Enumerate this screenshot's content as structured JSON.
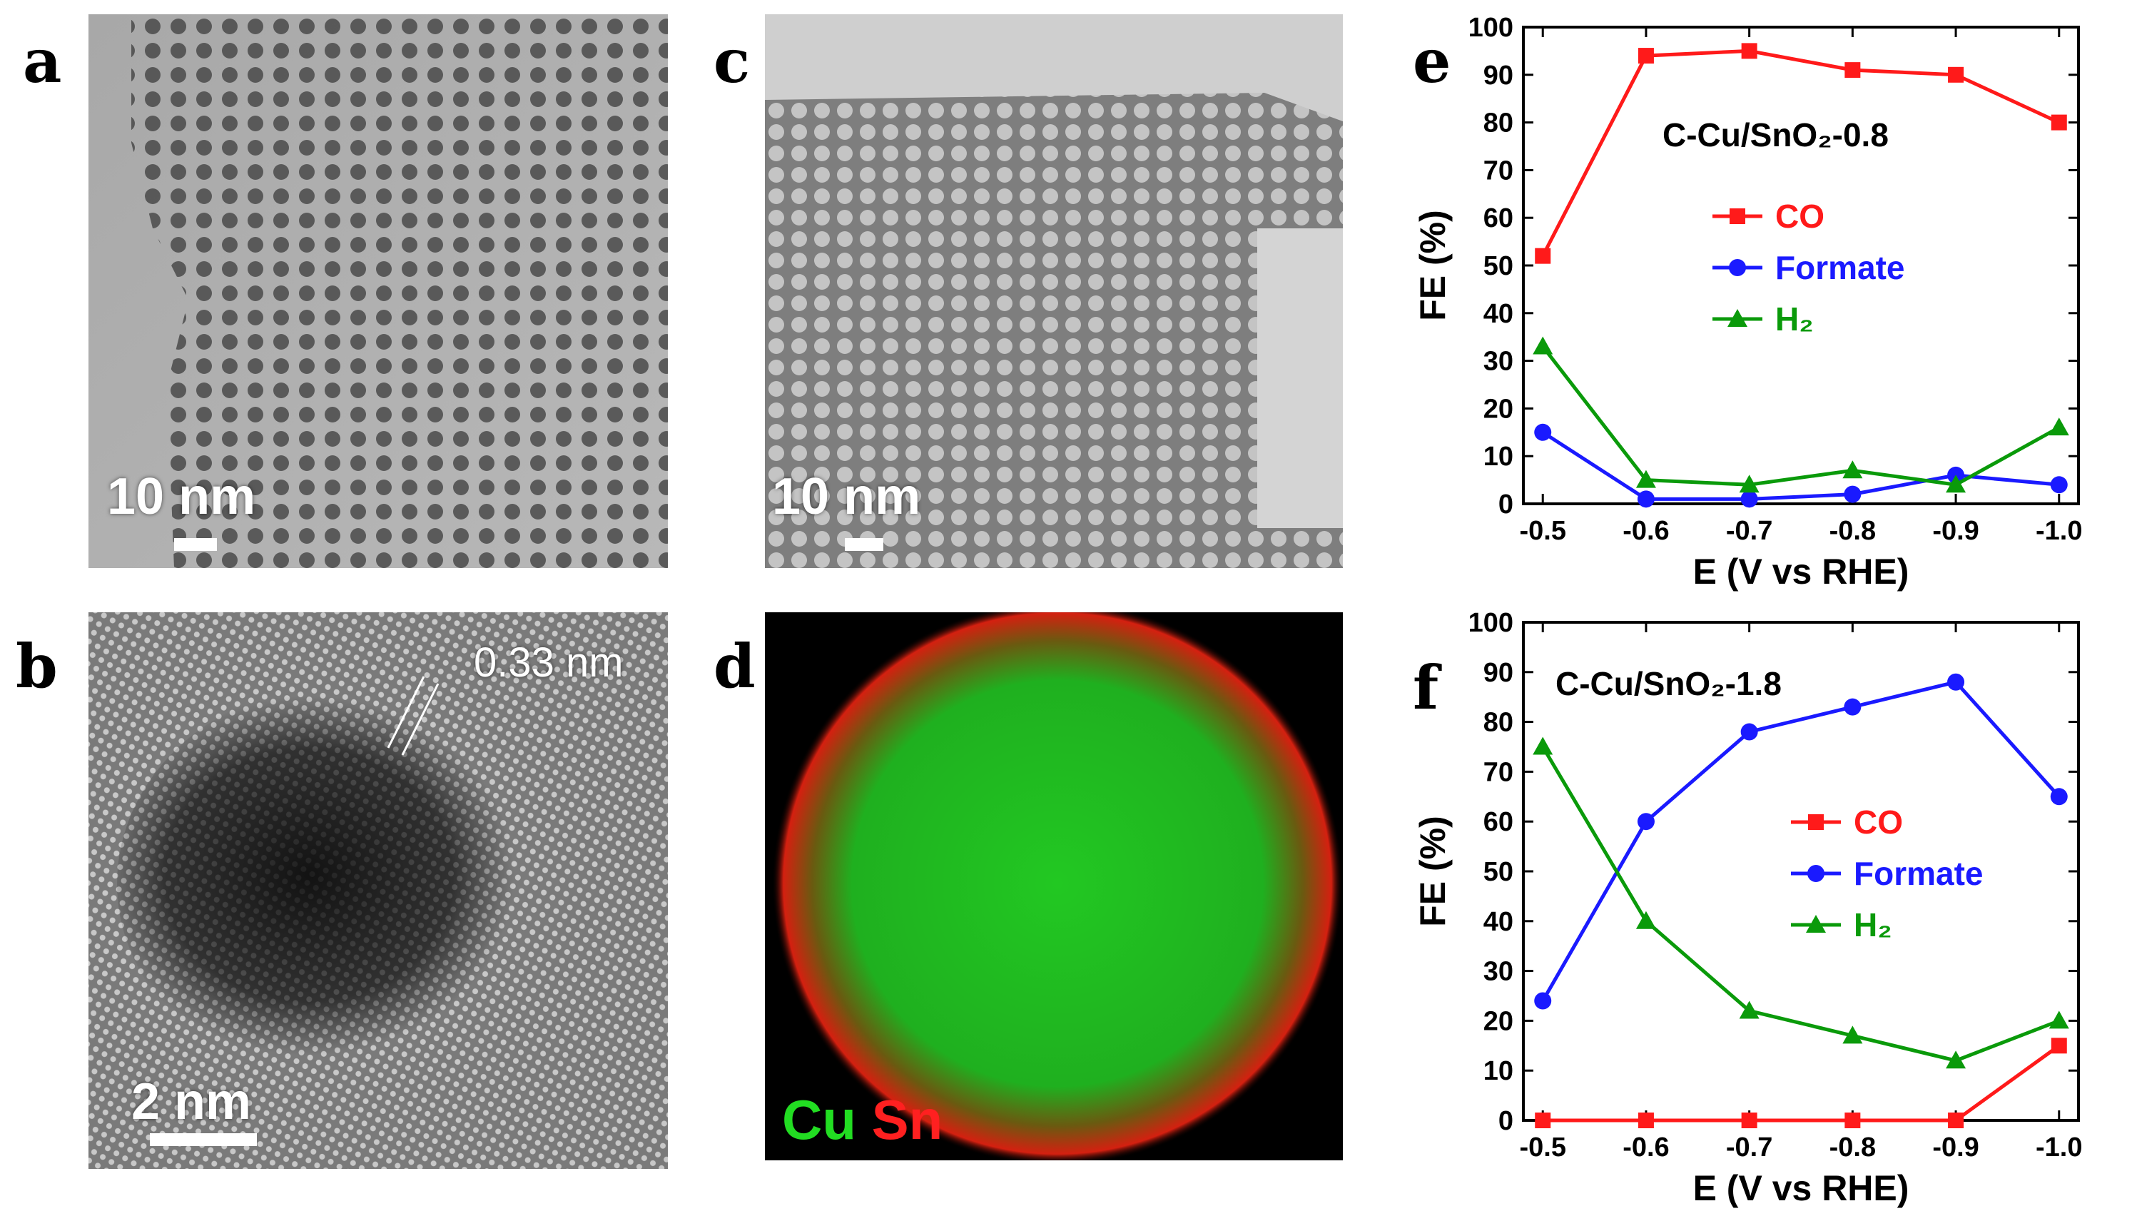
{
  "panels": {
    "a": {
      "letter": "a",
      "scale": "10 nm"
    },
    "b": {
      "letter": "b",
      "scale": "2 nm",
      "annotation": "0.33 nm"
    },
    "c": {
      "letter": "c",
      "scale": "10 nm"
    },
    "d": {
      "letter": "d",
      "label_cu": "Cu",
      "label_sn": "Sn",
      "color_cu": "#22dd22",
      "color_sn": "#ff2020"
    },
    "e": {
      "letter": "e"
    },
    "f": {
      "letter": "f"
    }
  },
  "chart_data": [
    {
      "panel": "e",
      "type": "line",
      "annotation": "C-Cu/SnO₂-0.8",
      "xlabel": "E (V vs RHE)",
      "ylabel": "FE (%)",
      "x": [
        -0.5,
        -0.6,
        -0.7,
        -0.8,
        -0.9,
        -1.0
      ],
      "x_tick_labels": [
        "-0.5",
        "-0.6",
        "-0.7",
        "-0.8",
        "-0.9",
        "-1.0"
      ],
      "ylim": [
        0,
        100
      ],
      "y_ticks": [
        0,
        10,
        20,
        30,
        40,
        50,
        60,
        70,
        80,
        90,
        100
      ],
      "legend_placement": "center-right",
      "series": [
        {
          "name": "CO",
          "color": "#ff1a1a",
          "marker": "square",
          "values": [
            52,
            94,
            95,
            91,
            90,
            80
          ]
        },
        {
          "name": "Formate",
          "color": "#1a1aff",
          "marker": "circle",
          "values": [
            15,
            1,
            1,
            2,
            6,
            4
          ]
        },
        {
          "name": "H₂",
          "color": "#0a9a0a",
          "marker": "triangle",
          "values": [
            33,
            5,
            4,
            7,
            4,
            16
          ]
        }
      ]
    },
    {
      "panel": "f",
      "type": "line",
      "annotation": "C-Cu/SnO₂-1.8",
      "xlabel": "E (V vs RHE)",
      "ylabel": "FE (%)",
      "x": [
        -0.5,
        -0.6,
        -0.7,
        -0.8,
        -0.9,
        -1.0
      ],
      "x_tick_labels": [
        "-0.5",
        "-0.6",
        "-0.7",
        "-0.8",
        "-0.9",
        "-1.0"
      ],
      "ylim": [
        0,
        100
      ],
      "y_ticks": [
        0,
        10,
        20,
        30,
        40,
        50,
        60,
        70,
        80,
        90,
        100
      ],
      "legend_placement": "center-right",
      "series": [
        {
          "name": "CO",
          "color": "#ff1a1a",
          "marker": "square",
          "values": [
            0,
            0,
            0,
            0,
            0,
            15
          ]
        },
        {
          "name": "Formate",
          "color": "#1a1aff",
          "marker": "circle",
          "values": [
            24,
            60,
            78,
            83,
            88,
            65
          ]
        },
        {
          "name": "H₂",
          "color": "#0a9a0a",
          "marker": "triangle",
          "values": [
            75,
            40,
            22,
            17,
            12,
            20
          ]
        }
      ]
    }
  ]
}
